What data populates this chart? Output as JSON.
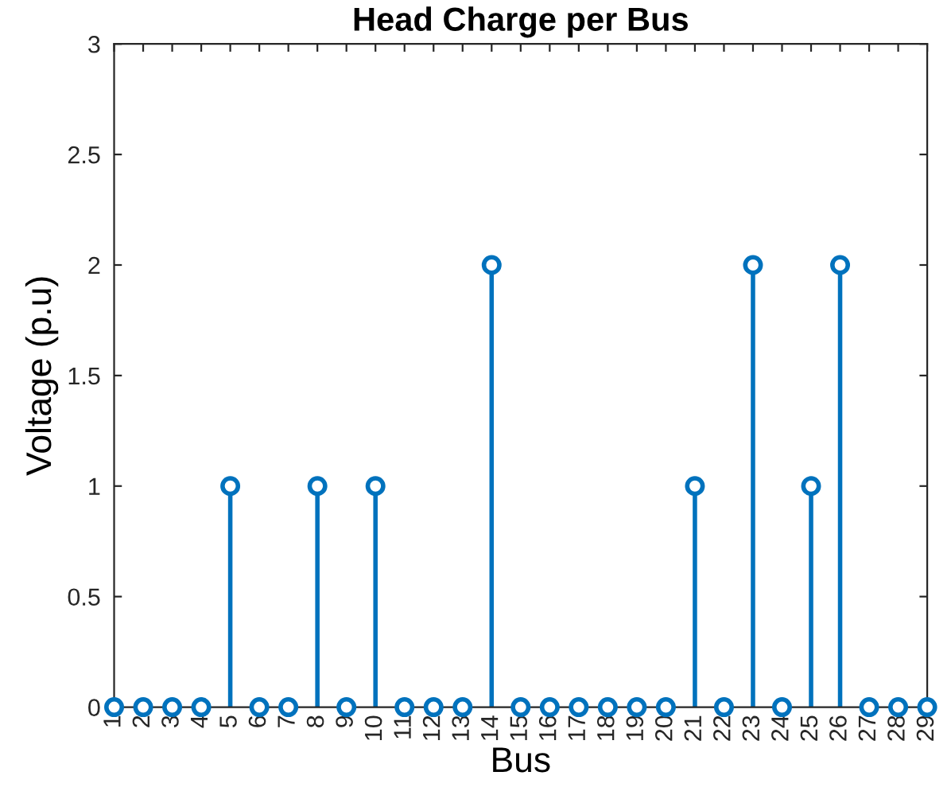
{
  "chart_data": {
    "type": "lollipop",
    "title": "Head Charge per Bus",
    "xlabel": "Bus",
    "ylabel": "Voltage (p.u)",
    "x": [
      1,
      2,
      3,
      4,
      5,
      6,
      7,
      8,
      9,
      10,
      11,
      12,
      13,
      14,
      15,
      16,
      17,
      18,
      19,
      20,
      21,
      22,
      23,
      24,
      25,
      26,
      27,
      28,
      29
    ],
    "series": [
      {
        "color": "#0072bd",
        "values": [
          0,
          0,
          0,
          0,
          1,
          0,
          0,
          1,
          0,
          1,
          0,
          0,
          0,
          2,
          0,
          0,
          0,
          0,
          0,
          0,
          1,
          0,
          2,
          0,
          1,
          2,
          0,
          0,
          0
        ]
      }
    ],
    "marker": "circle",
    "line_style": "solid",
    "grid": false,
    "xlim": [
      1,
      29
    ],
    "xticks": [
      1,
      2,
      3,
      4,
      5,
      6,
      7,
      8,
      9,
      10,
      11,
      12,
      13,
      14,
      15,
      16,
      17,
      18,
      19,
      20,
      21,
      22,
      23,
      24,
      25,
      26,
      27,
      28,
      29
    ],
    "ylim": [
      0,
      3
    ],
    "yticks": [
      0,
      0.5,
      1,
      1.5,
      2,
      2.5,
      3
    ]
  }
}
